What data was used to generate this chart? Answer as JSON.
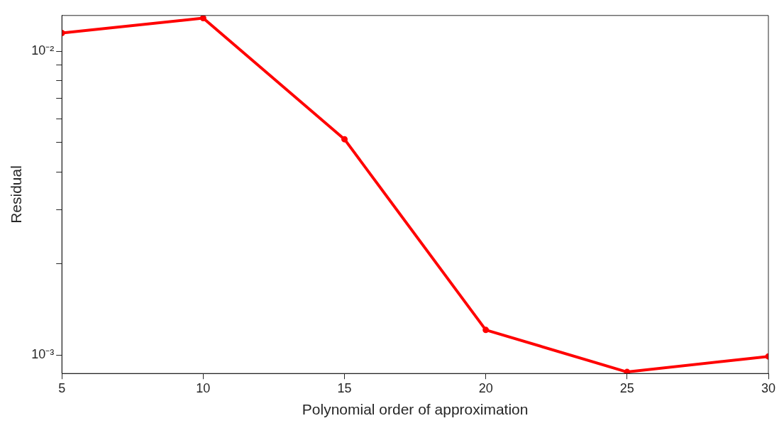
{
  "chart_data": {
    "type": "line",
    "xlabel": "Polynomial order of approximation",
    "ylabel": "Residual",
    "x": [
      5,
      10,
      15,
      20,
      25,
      30
    ],
    "series": [
      {
        "color": "#ff0000",
        "values": [
          0.01147,
          0.01284,
          0.00513,
          0.00121,
          0.00088,
          0.00099
        ]
      }
    ],
    "log": "y",
    "grid": false,
    "legend": false,
    "marker": "circle",
    "line_style": "solid",
    "xlim": [
      5,
      30
    ],
    "xticks": [
      5,
      10,
      15,
      20,
      25,
      30
    ],
    "ylim": [
      0.00087,
      0.0131
    ],
    "yticks": [
      {
        "value": 0.001,
        "label": "10⁻³"
      },
      {
        "value": 0.002,
        "label": null
      },
      {
        "value": 0.003,
        "label": null
      },
      {
        "value": 0.004,
        "label": null
      },
      {
        "value": 0.005,
        "label": null
      },
      {
        "value": 0.006,
        "label": null
      },
      {
        "value": 0.007,
        "label": null
      },
      {
        "value": 0.008,
        "label": null
      },
      {
        "value": 0.009,
        "label": null
      },
      {
        "value": 0.01,
        "label": "10⁻²"
      }
    ]
  }
}
